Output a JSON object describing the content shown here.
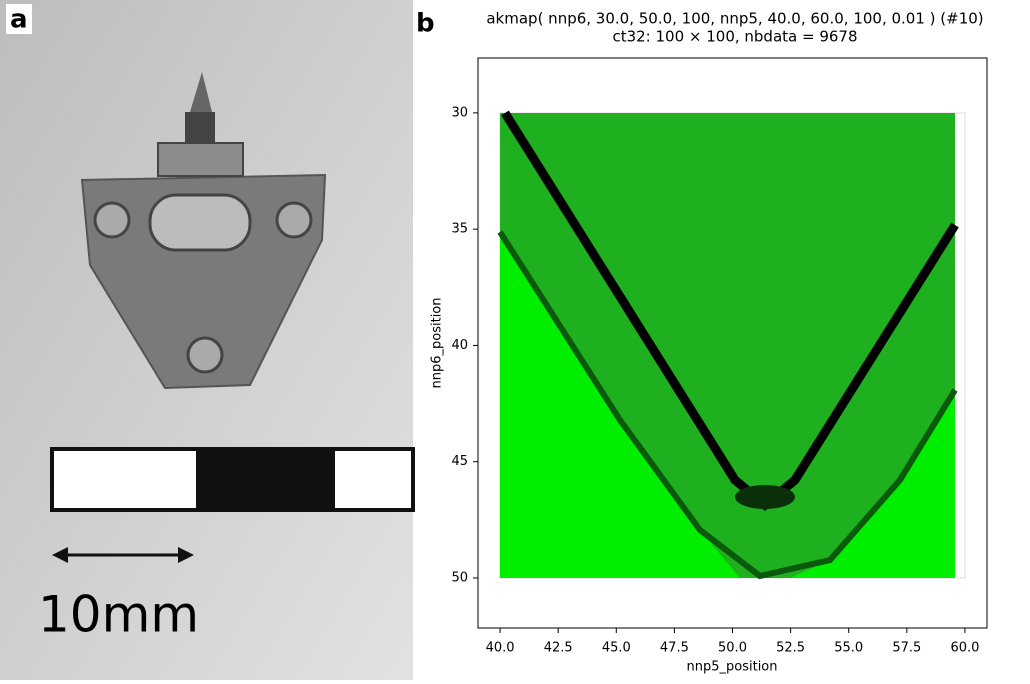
{
  "panel_a": {
    "label": "a",
    "scale_label": "10mm"
  },
  "chart_data": {
    "type": "heatmap",
    "panel_label": "b",
    "title": "akmap( nnp6, 30.0, 50.0, 100, nnp5, 40.0, 60.0, 100, 0.01 ) (#10)",
    "subtitle": "ct32: 100 × 100, nbdata = 9678",
    "x_label": "nnp5_position",
    "y_label": "nnp6_position",
    "xlim": [
      39.05,
      60.95
    ],
    "ylim": [
      52.15,
      27.64
    ],
    "xticks": [
      {
        "value": 40,
        "label": "40.0"
      },
      {
        "value": 42.5,
        "label": "42.5"
      },
      {
        "value": 45,
        "label": "45.0"
      },
      {
        "value": 47.5,
        "label": "47.5"
      },
      {
        "value": 50,
        "label": "50.0"
      },
      {
        "value": 52.5,
        "label": "52.5"
      },
      {
        "value": 55,
        "label": "55.0"
      },
      {
        "value": 57.5,
        "label": "57.5"
      },
      {
        "value": 60,
        "label": "60.0"
      }
    ],
    "yticks": [
      30,
      35,
      40,
      45,
      50
    ]
  }
}
